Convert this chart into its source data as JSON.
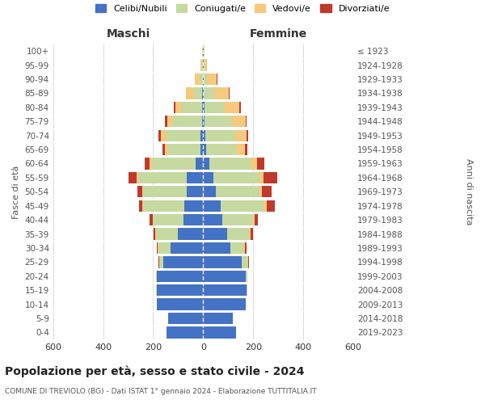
{
  "age_groups": [
    "0-4",
    "5-9",
    "10-14",
    "15-19",
    "20-24",
    "25-29",
    "30-34",
    "35-39",
    "40-44",
    "45-49",
    "50-54",
    "55-59",
    "60-64",
    "65-69",
    "70-74",
    "75-79",
    "80-84",
    "85-89",
    "90-94",
    "95-99",
    "100+"
  ],
  "birth_years": [
    "2019-2023",
    "2014-2018",
    "2009-2013",
    "2004-2008",
    "1999-2003",
    "1994-1998",
    "1989-1993",
    "1984-1988",
    "1979-1983",
    "1974-1978",
    "1969-1973",
    "1964-1968",
    "1959-1963",
    "1954-1958",
    "1949-1953",
    "1944-1948",
    "1939-1943",
    "1934-1938",
    "1929-1933",
    "1924-1928",
    "≤ 1923"
  ],
  "colors": {
    "celibi": "#4472C4",
    "coniugati": "#C5D9A0",
    "vedovi": "#F5C97E",
    "divorziati": "#C0392B"
  },
  "maschi": {
    "celibi": [
      145,
      140,
      185,
      185,
      185,
      160,
      130,
      100,
      80,
      75,
      65,
      65,
      30,
      12,
      10,
      4,
      5,
      3,
      2,
      2,
      2
    ],
    "coniugati": [
      0,
      0,
      0,
      3,
      5,
      15,
      50,
      90,
      120,
      165,
      175,
      195,
      175,
      130,
      140,
      120,
      80,
      35,
      10,
      3,
      1
    ],
    "vedovi": [
      0,
      0,
      0,
      0,
      0,
      1,
      1,
      1,
      2,
      2,
      3,
      5,
      8,
      10,
      18,
      20,
      25,
      30,
      20,
      5,
      1
    ],
    "divorziati": [
      0,
      0,
      0,
      0,
      0,
      3,
      4,
      8,
      12,
      15,
      20,
      35,
      20,
      10,
      12,
      8,
      8,
      2,
      2,
      0,
      0
    ]
  },
  "femmine": {
    "celibi": [
      130,
      120,
      170,
      175,
      170,
      155,
      110,
      95,
      75,
      70,
      50,
      40,
      25,
      12,
      8,
      5,
      4,
      3,
      2,
      1,
      1
    ],
    "coniugati": [
      0,
      0,
      0,
      3,
      8,
      25,
      55,
      90,
      125,
      175,
      175,
      185,
      165,
      120,
      120,
      110,
      80,
      40,
      12,
      3,
      1
    ],
    "vedovi": [
      0,
      0,
      0,
      0,
      0,
      1,
      2,
      3,
      5,
      8,
      10,
      15,
      25,
      35,
      45,
      55,
      60,
      60,
      40,
      10,
      3
    ],
    "divorziati": [
      0,
      0,
      0,
      0,
      0,
      2,
      5,
      10,
      15,
      35,
      40,
      55,
      30,
      10,
      8,
      5,
      8,
      4,
      2,
      0,
      0
    ]
  },
  "title": "Popolazione per età, sesso e stato civile - 2024",
  "subtitle": "COMUNE DI TREVIOLO (BG) - Dati ISTAT 1° gennaio 2024 - Elaborazione TUTTITALIA.IT",
  "xlabel_left": "Maschi",
  "xlabel_right": "Femmine",
  "ylabel_left": "Fasce di età",
  "ylabel_right": "Anni di nascita",
  "xlim": 600,
  "background_color": "#FFFFFF",
  "legend_labels": [
    "Celibi/Nubili",
    "Coniugati/e",
    "Vedovi/e",
    "Divorziati/e"
  ]
}
